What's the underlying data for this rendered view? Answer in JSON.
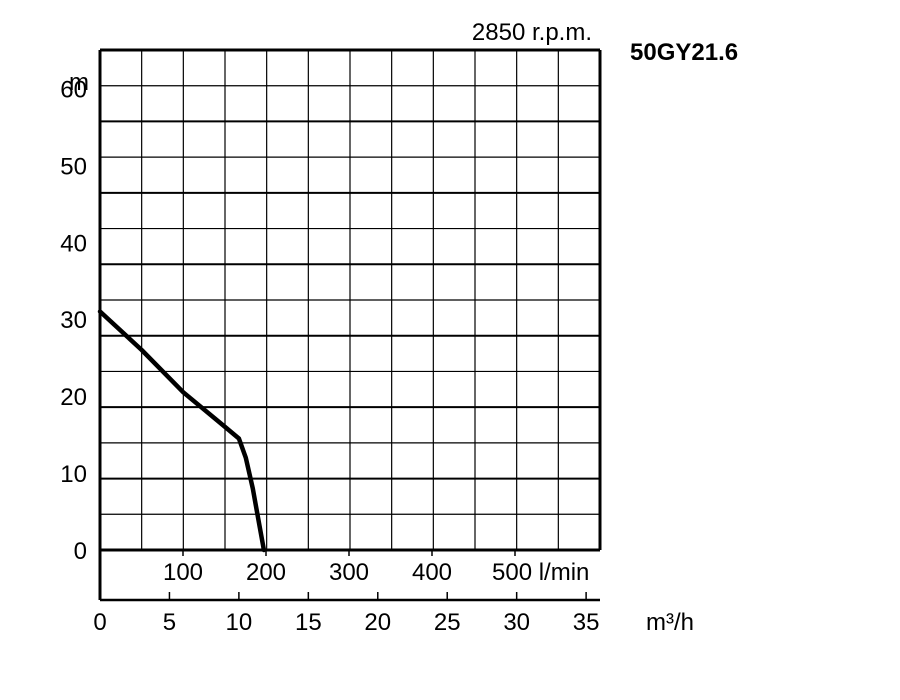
{
  "chart_data": {
    "type": "line",
    "title": "50GY21.6",
    "subtitle": "2850 r.p.m.",
    "ylabel": "m",
    "ylim": [
      0,
      65
    ],
    "yticks": [
      "0",
      "10",
      "20",
      "30",
      "40",
      "50",
      "60"
    ],
    "xlabel": "m³/h",
    "xlim": [
      0,
      36
    ],
    "xticks": [
      "0",
      "5",
      "10",
      "15",
      "20",
      "25",
      "30",
      "35"
    ],
    "secondary_xlabel": "l/min",
    "secondary_xticks": [
      "100",
      "200",
      "300",
      "400",
      "500 l/min"
    ],
    "grid": true,
    "series": [
      {
        "color": "#000000",
        "x": [
          0,
          3,
          6,
          9,
          10,
          10.5,
          11,
          11.5,
          11.8
        ],
        "y": [
          31,
          26,
          20.5,
          16,
          14.5,
          12,
          8,
          3,
          0
        ]
      }
    ]
  }
}
